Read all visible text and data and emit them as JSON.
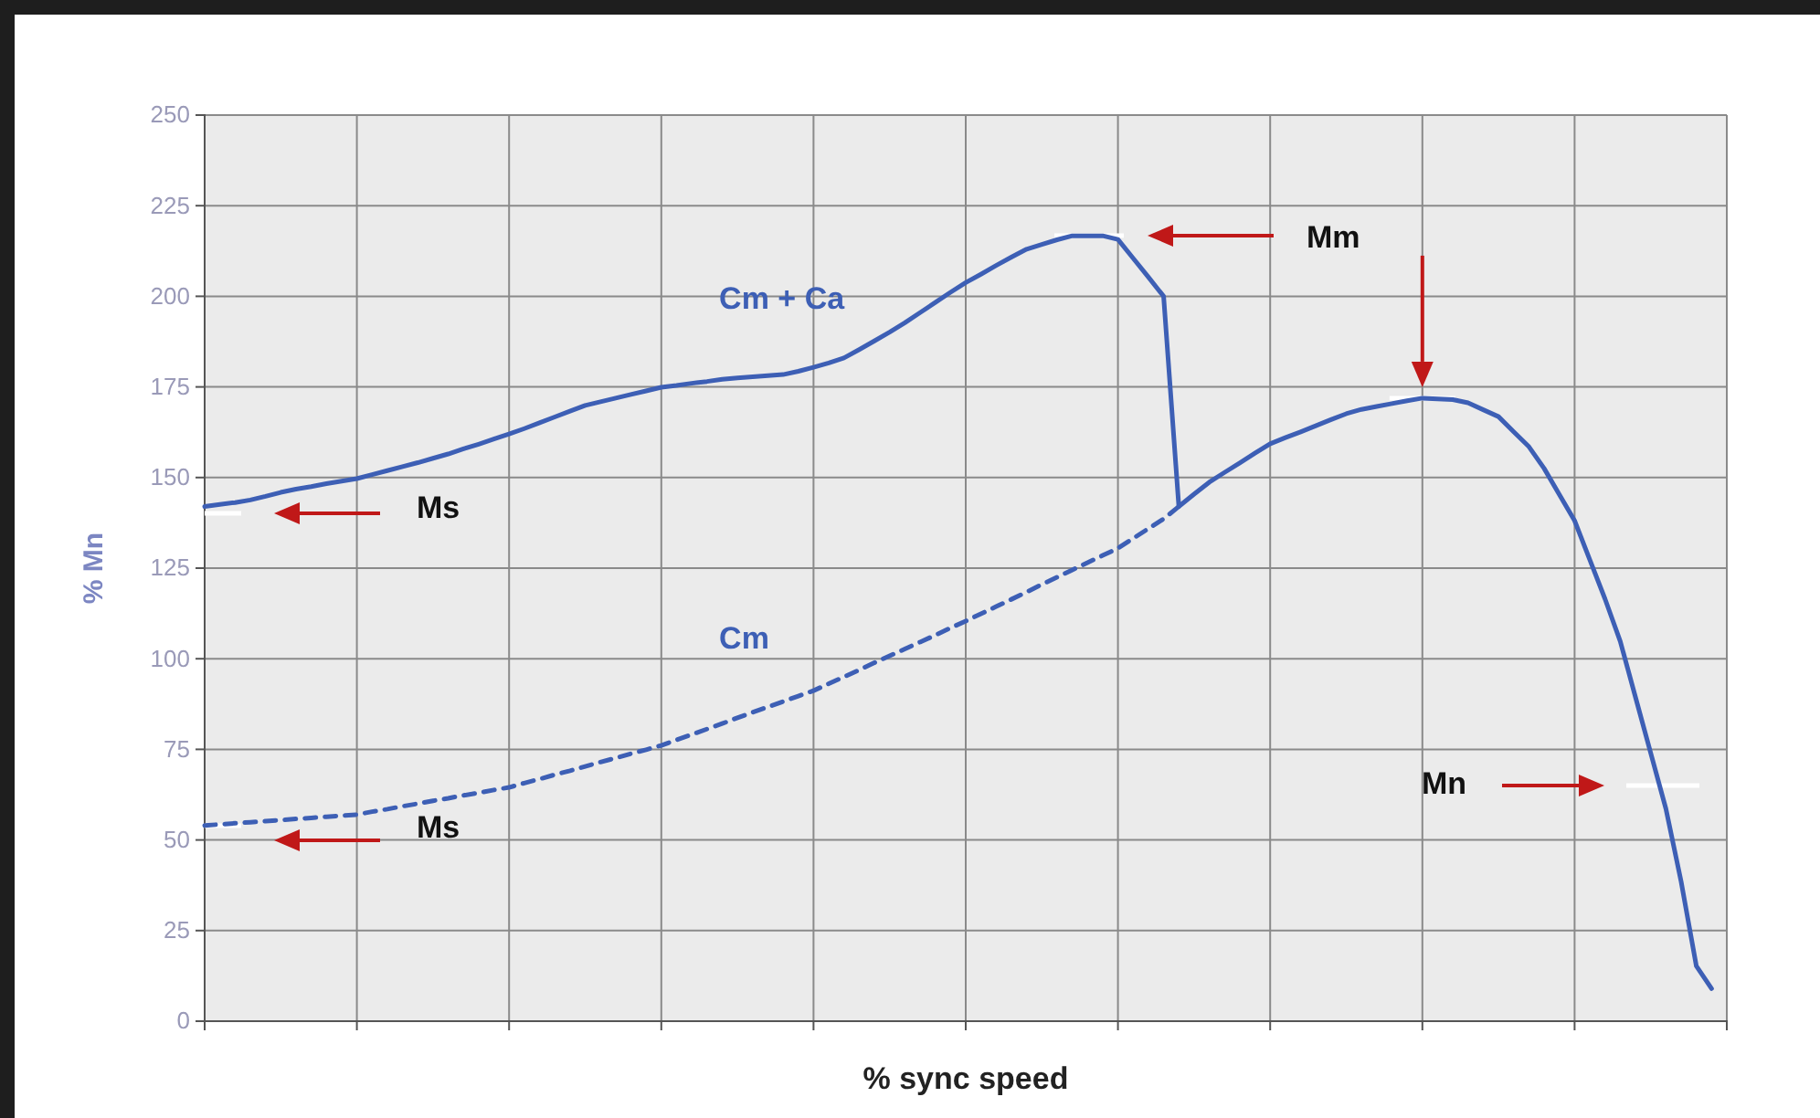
{
  "chart_data": {
    "type": "line",
    "xlabel": "% sync speed",
    "ylabel": "% Mn",
    "categories": [
      null,
      null,
      null,
      null,
      null,
      null,
      null,
      null,
      null,
      null,
      null,
      null,
      null,
      null,
      null,
      null,
      null,
      null,
      null,
      null,
      null,
      null,
      null,
      null,
      null,
      null,
      null,
      null,
      null,
      null,
      null,
      null,
      null,
      null,
      null,
      null,
      null,
      null,
      null,
      null,
      null,
      null,
      null,
      null,
      null,
      null,
      null,
      null,
      null,
      null,
      null,
      null,
      null,
      null,
      null,
      null,
      null,
      null,
      null,
      null,
      null,
      null,
      null,
      null,
      null,
      null,
      null,
      null,
      null,
      null,
      null,
      null,
      null,
      null,
      null,
      null,
      null,
      null,
      null,
      null,
      null,
      null,
      null,
      null,
      null,
      null,
      null,
      null,
      null,
      null,
      null,
      null,
      null,
      null,
      null,
      null,
      null,
      null,
      null,
      null,
      null
    ],
    "ylim": [
      0,
      250
    ],
    "yticks": [
      0,
      25,
      50,
      75,
      100,
      125,
      150,
      175,
      200,
      225,
      250
    ],
    "tick_labels": "y",
    "grid": true,
    "series": [
      {
        "name": "Cm + Ca",
        "color": "#3d5fb5",
        "line_style": "solid",
        "values": [
          142,
          142.6,
          143.1,
          143.8,
          144.8,
          145.9,
          146.8,
          147.5,
          148.3,
          149,
          149.7,
          150.8,
          151.9,
          153,
          154.1,
          155.3,
          156.5,
          157.9,
          159.2,
          160.6,
          162,
          163.5,
          165.1,
          166.7,
          168.3,
          169.9,
          170.9,
          171.9,
          172.9,
          173.9,
          174.9,
          175.4,
          176,
          176.5,
          177.1,
          177.5,
          177.8,
          178.1,
          178.4,
          179.3,
          180.4,
          181.6,
          183,
          185.3,
          187.7,
          190.1,
          192.7,
          195.5,
          198.3,
          201.1,
          203.8,
          206.1,
          208.5,
          210.8,
          213,
          214.3,
          215.6,
          216.7,
          216.7,
          216.7,
          215.7,
          210.5,
          205.3,
          200,
          142,
          145.4,
          148.7,
          151.4,
          154,
          156.7,
          159.3,
          161,
          162.6,
          164.3,
          166,
          167.6,
          168.8,
          169.6,
          170.4,
          171.2,
          171.9,
          171.7,
          171.5,
          170.6,
          168.7,
          166.8,
          162.6,
          158.5,
          152.5,
          145.3,
          138.1,
          127.3,
          116.5,
          104.8,
          89.4,
          74,
          58.6,
          38.5,
          15.2,
          9,
          null
        ]
      },
      {
        "name": "Cm",
        "color": "#3d5fb5",
        "line_style": "dashed",
        "values": [
          54,
          54.3,
          54.6,
          54.9,
          55.2,
          55.5,
          55.8,
          56.1,
          56.4,
          56.7,
          57,
          57.8,
          58.5,
          59.3,
          60,
          60.8,
          61.5,
          62.3,
          63,
          63.8,
          64.5,
          65.7,
          66.8,
          68,
          69.1,
          70.3,
          71.5,
          72.6,
          73.8,
          74.9,
          76.1,
          77.6,
          79.1,
          80.6,
          82.1,
          83.7,
          85.2,
          86.7,
          88.2,
          89.7,
          91.2,
          93.1,
          95,
          96.9,
          98.9,
          100.8,
          102.7,
          104.6,
          106.5,
          108.5,
          110.4,
          112.4,
          114.4,
          116.4,
          118.4,
          120.5,
          122.5,
          124.5,
          126.5,
          128.5,
          130.5,
          133.2,
          135.9,
          138.6,
          142,
          null,
          null,
          null,
          null,
          null,
          null,
          null,
          null,
          null,
          null,
          null,
          null,
          null,
          null,
          null,
          null,
          null,
          null,
          null,
          null,
          null,
          null,
          null,
          null,
          null,
          null,
          null,
          null,
          null,
          null,
          null,
          null,
          null,
          null,
          null,
          null
        ]
      }
    ],
    "annotations": [
      "Ms",
      "Ms",
      "Mm",
      "Mn"
    ]
  }
}
